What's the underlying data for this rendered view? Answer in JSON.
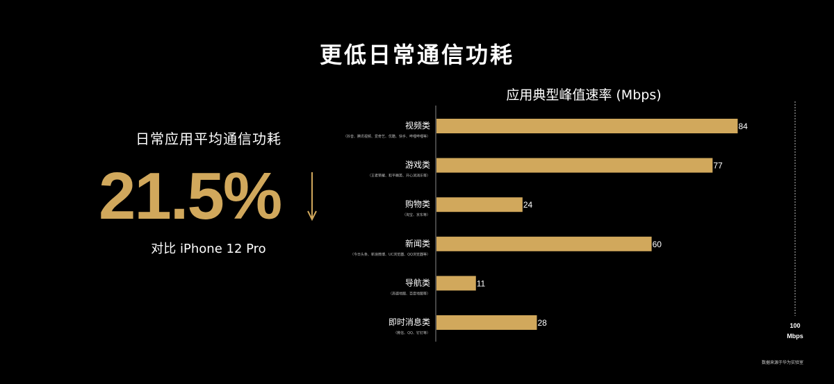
{
  "slide": {
    "title": "更低日常通信功耗",
    "left_panel": {
      "subtitle": "日常应用平均通信功耗",
      "value": "21.5%",
      "comparison": "对比 iPhone 12 Pro"
    },
    "footnote": "数据来源于华为实验室"
  },
  "colors": {
    "accent": "#d1a85c",
    "background": "#000000"
  },
  "chart_data": {
    "type": "bar",
    "orientation": "horizontal",
    "title": "应用典型峰值速率 (Mbps)",
    "categories": [
      "视频类",
      "游戏类",
      "购物类",
      "新闻类",
      "导航类",
      "即时消息类"
    ],
    "category_notes": [
      "（抖音、腾讯视频、爱奇艺、优酷、快手、哔哩哔哩等）",
      "（王者荣耀、和平精英、开心消消乐等）",
      "（淘宝、京东等）",
      "（今日头条、新浪微博、UC浏览器、QQ浏览器等）",
      "（高德地图、百度地图等）",
      "（微信、QQ、钉钉等）"
    ],
    "values": [
      84,
      77,
      24,
      60,
      11,
      28
    ],
    "value_labels": [
      "84",
      "77",
      "24",
      "60",
      "11",
      "28"
    ],
    "xlim": [
      0,
      100
    ],
    "reference_line": {
      "value": 100,
      "label_value": "100",
      "label_unit": "Mbps"
    },
    "grid": false
  }
}
